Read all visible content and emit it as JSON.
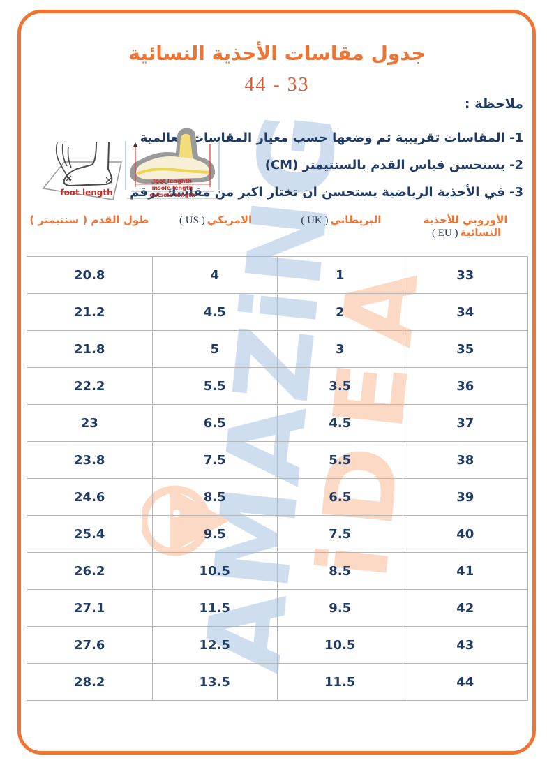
{
  "page": {
    "title": "جدول مقاسات الأحذية النسائية",
    "size_range": "44 - 33"
  },
  "notes": {
    "label": "ملاحظة :",
    "items": [
      "1- المقاسات تقريبية تم وضعها حسب معيار المقاسات العالمية",
      "2- يستحسن قياس القدم بالسنتيمتر (CM)",
      "3- في الأحذية الرياضية يستحسن ان تختار اكبر من مقاسك برقم"
    ]
  },
  "diagrams": {
    "foot_measure_label": "foot length",
    "shoe_labels": [
      "foot lenghth",
      "insole length",
      "outsole length"
    ]
  },
  "watermark": {
    "blue_text": "AMAZiNG",
    "peach_text": "iDEA",
    "blue_color": "#cfdeef",
    "peach_color": "#fbd9c5"
  },
  "colors": {
    "accent_orange": "#ee7433",
    "navy_text": "#1f3a63",
    "subtitle_red": "#e0572a",
    "table_line": "#b5b5b5"
  },
  "table": {
    "headers": [
      {
        "key": "cm",
        "ar": "طول القدم ( سنتيمتر )",
        "en": ""
      },
      {
        "key": "us",
        "ar": "الامريكي",
        "en": "( US )"
      },
      {
        "key": "uk",
        "ar": "البريطاني",
        "en": "( UK )"
      },
      {
        "key": "eu",
        "ar": "الأوروبي للأحذية النسائية",
        "en": "( EU )"
      }
    ],
    "rows": [
      {
        "cm": "20.8",
        "us": "4",
        "uk": "1",
        "eu": "33"
      },
      {
        "cm": "21.2",
        "us": "4.5",
        "uk": "2",
        "eu": "34"
      },
      {
        "cm": "21.8",
        "us": "5",
        "uk": "3",
        "eu": "35"
      },
      {
        "cm": "22.2",
        "us": "5.5",
        "uk": "3.5",
        "eu": "36"
      },
      {
        "cm": "23",
        "us": "6.5",
        "uk": "4.5",
        "eu": "37"
      },
      {
        "cm": "23.8",
        "us": "7.5",
        "uk": "5.5",
        "eu": "38"
      },
      {
        "cm": "24.6",
        "us": "8.5",
        "uk": "6.5",
        "eu": "39"
      },
      {
        "cm": "25.4",
        "us": "9.5",
        "uk": "7.5",
        "eu": "40"
      },
      {
        "cm": "26.2",
        "us": "10.5",
        "uk": "8.5",
        "eu": "41"
      },
      {
        "cm": "27.1",
        "us": "11.5",
        "uk": "9.5",
        "eu": "42"
      },
      {
        "cm": "27.6",
        "us": "12.5",
        "uk": "10.5",
        "eu": "43"
      },
      {
        "cm": "28.2",
        "us": "13.5",
        "uk": "11.5",
        "eu": "44"
      }
    ]
  }
}
